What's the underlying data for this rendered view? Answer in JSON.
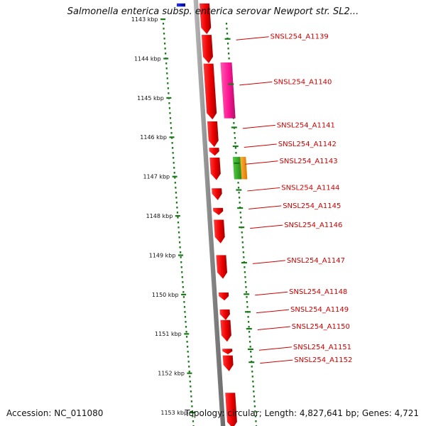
{
  "title": "Salmonella enterica subsp. enterica serovar Newport str. SL2...",
  "footer": {
    "accession_label": "Accession:",
    "accession": "NC_011080",
    "topology_label": "Topology:",
    "topology": "circular",
    "length_label": "Length:",
    "length": "4,827,641 bp",
    "genes_label": "Genes:",
    "genes": "4,721"
  },
  "colors": {
    "forward_gene": "#ff0000",
    "label_text": "#cc0000",
    "tick": "#1a7a1a",
    "backbone": "#888888",
    "magenta_feature": "#ff1493",
    "green_feature": "#33aa22",
    "orange_feature": "#ff9900",
    "blue_feature": "#0000cc"
  },
  "chart_data": {
    "type": "genome-map",
    "view": "linear segment of circular genome",
    "axis_unit": "kbp",
    "kbp_ticks": [
      {
        "kbp": 1143,
        "label": "1143 kbp"
      },
      {
        "kbp": 1144,
        "label": "1144 kbp"
      },
      {
        "kbp": 1145,
        "label": "1145 kbp"
      },
      {
        "kbp": 1146,
        "label": "1146 kbp"
      },
      {
        "kbp": 1147,
        "label": "1147 kbp"
      },
      {
        "kbp": 1148,
        "label": "1148 kbp"
      },
      {
        "kbp": 1149,
        "label": "1149 kbp"
      },
      {
        "kbp": 1150,
        "label": "1150 kbp"
      },
      {
        "kbp": 1151,
        "label": "1151 kbp"
      },
      {
        "kbp": 1152,
        "label": "1152 kbp"
      },
      {
        "kbp": 1153,
        "label": "1153 kbp"
      }
    ],
    "gene_labels": [
      {
        "name": "SNSL254_A1139",
        "kbp": 1143.5
      },
      {
        "name": "SNSL254_A1140",
        "kbp": 1144.65
      },
      {
        "name": "SNSL254_A1141",
        "kbp": 1145.75
      },
      {
        "name": "SNSL254_A1142",
        "kbp": 1146.23
      },
      {
        "name": "SNSL254_A1143",
        "kbp": 1146.66
      },
      {
        "name": "SNSL254_A1144",
        "kbp": 1147.34
      },
      {
        "name": "SNSL254_A1145",
        "kbp": 1147.8
      },
      {
        "name": "SNSL254_A1146",
        "kbp": 1148.29
      },
      {
        "name": "SNSL254_A1147",
        "kbp": 1149.19
      },
      {
        "name": "SNSL254_A1148",
        "kbp": 1149.99
      },
      {
        "name": "SNSL254_A1149",
        "kbp": 1150.44
      },
      {
        "name": "SNSL254_A1150",
        "kbp": 1150.87
      },
      {
        "name": "SNSL254_A1151",
        "kbp": 1151.39
      },
      {
        "name": "SNSL254_A1152",
        "kbp": 1151.72
      }
    ],
    "features": [
      {
        "track": "forward",
        "start_kbp": 1142.6,
        "end_kbp": 1143.38,
        "color": "red"
      },
      {
        "track": "forward",
        "start_kbp": 1143.4,
        "end_kbp": 1144.12,
        "color": "red"
      },
      {
        "track": "forward",
        "start_kbp": 1144.13,
        "end_kbp": 1145.55,
        "color": "red"
      },
      {
        "track": "reverse",
        "start_kbp": 1144.1,
        "end_kbp": 1145.52,
        "color": "magenta"
      },
      {
        "track": "forward",
        "start_kbp": 1145.6,
        "end_kbp": 1146.25,
        "color": "red"
      },
      {
        "track": "forward",
        "start_kbp": 1146.27,
        "end_kbp": 1146.47,
        "color": "red"
      },
      {
        "track": "forward",
        "start_kbp": 1146.52,
        "end_kbp": 1147.09,
        "color": "red"
      },
      {
        "track": "reverse",
        "start_kbp": 1146.5,
        "end_kbp": 1147.07,
        "color": "green"
      },
      {
        "track": "reverse2",
        "start_kbp": 1146.5,
        "end_kbp": 1147.07,
        "color": "orange"
      },
      {
        "track": "forward",
        "start_kbp": 1147.3,
        "end_kbp": 1147.6,
        "color": "red"
      },
      {
        "track": "forward",
        "start_kbp": 1147.8,
        "end_kbp": 1147.98,
        "color": "red"
      },
      {
        "track": "forward",
        "start_kbp": 1148.1,
        "end_kbp": 1148.7,
        "color": "red"
      },
      {
        "track": "forward",
        "start_kbp": 1149.0,
        "end_kbp": 1149.6,
        "color": "red"
      },
      {
        "track": "forward",
        "start_kbp": 1149.95,
        "end_kbp": 1150.15,
        "color": "red"
      },
      {
        "track": "forward",
        "start_kbp": 1150.38,
        "end_kbp": 1150.65,
        "color": "red"
      },
      {
        "track": "forward",
        "start_kbp": 1150.65,
        "end_kbp": 1151.2,
        "color": "red"
      },
      {
        "track": "forward",
        "start_kbp": 1151.38,
        "end_kbp": 1151.52,
        "color": "red"
      },
      {
        "track": "forward",
        "start_kbp": 1151.55,
        "end_kbp": 1151.95,
        "color": "red"
      },
      {
        "track": "forward",
        "start_kbp": 1152.5,
        "end_kbp": 1153.4,
        "color": "red"
      },
      {
        "track": "top-left",
        "start_kbp": 1142.6,
        "end_kbp": 1142.68,
        "color": "blue"
      }
    ]
  }
}
